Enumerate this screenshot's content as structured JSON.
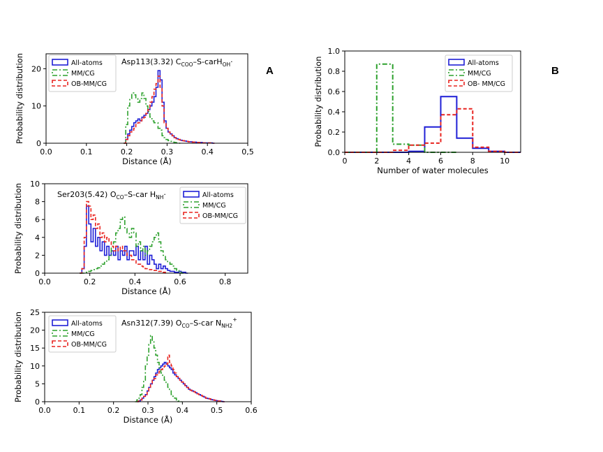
{
  "figure": {
    "panel_labels": [
      "A",
      "B"
    ]
  },
  "chart_data": [
    {
      "id": "asp113",
      "type": "histogram",
      "annotation": {
        "main": "Asp113(3.32) C",
        "sub1": "COO",
        "mid": "–S-carH",
        "sub2": "OH",
        "tail": "·"
      },
      "xlabel": "Distance (Å)",
      "ylabel": "Probability distribution",
      "xlim": [
        0,
        0.5
      ],
      "ylim": [
        0,
        24
      ],
      "xticks": [
        "0.0",
        "0.1",
        "0.2",
        "0.3",
        "0.4",
        "0,5"
      ],
      "xtick_values": [
        0,
        0.1,
        0.2,
        0.3,
        0.4,
        0.5
      ],
      "yticks": [
        "0",
        "10",
        "20"
      ],
      "ytick_values": [
        0,
        10,
        20
      ],
      "legend_position": "top-left",
      "series": [
        {
          "name": "All-atoms",
          "color": "#1f1fd6",
          "dash": "solid",
          "x": [
            0.195,
            0.2,
            0.205,
            0.21,
            0.215,
            0.22,
            0.225,
            0.23,
            0.235,
            0.24,
            0.245,
            0.25,
            0.255,
            0.26,
            0.265,
            0.27,
            0.275,
            0.28,
            0.285,
            0.29,
            0.295,
            0.3,
            0.305,
            0.31,
            0.315,
            0.32,
            0.325,
            0.33,
            0.335,
            0.34,
            0.345,
            0.35,
            0.355,
            0.36,
            0.365,
            0.37,
            0.375,
            0.38,
            0.385,
            0.39,
            0.395,
            0.4,
            0.405,
            0.41,
            0.415
          ],
          "values": [
            0,
            1,
            2.5,
            3.5,
            4.5,
            5.5,
            6,
            6.5,
            6,
            7,
            7.5,
            8,
            9,
            10,
            11,
            12.5,
            15,
            19.5,
            17,
            11,
            6,
            4,
            3,
            2.5,
            2,
            1.5,
            1.2,
            1,
            0.8,
            0.7,
            0.6,
            0.5,
            0.4,
            0.4,
            0.3,
            0.3,
            0.2,
            0.2,
            0.2,
            0.1,
            0.1,
            0.1,
            0.1,
            0.1,
            0
          ]
        },
        {
          "name": "MM/CG",
          "color": "#2ca02c",
          "dash": "dashdot",
          "x": [
            0.195,
            0.2,
            0.205,
            0.21,
            0.215,
            0.22,
            0.225,
            0.23,
            0.235,
            0.24,
            0.245,
            0.25,
            0.255,
            0.26,
            0.265,
            0.27,
            0.275,
            0.28,
            0.285,
            0.29,
            0.295,
            0.3,
            0.305,
            0.31,
            0.315,
            0.32,
            0.325,
            0.33
          ],
          "values": [
            0,
            5,
            10,
            12,
            13.5,
            13,
            12,
            11,
            12,
            13.5,
            12,
            10,
            8.5,
            7,
            6,
            5.5,
            5.5,
            4,
            3.5,
            2,
            1.5,
            1,
            0.7,
            0.5,
            0.3,
            0.2,
            0.1,
            0
          ]
        },
        {
          "name": "OB-MM/CG",
          "color": "#e8231f",
          "dash": "dashed",
          "x": [
            0.195,
            0.2,
            0.205,
            0.21,
            0.215,
            0.22,
            0.225,
            0.23,
            0.235,
            0.24,
            0.245,
            0.25,
            0.255,
            0.26,
            0.265,
            0.27,
            0.275,
            0.28,
            0.285,
            0.29,
            0.295,
            0.3,
            0.305,
            0.31,
            0.315,
            0.32,
            0.325,
            0.33,
            0.335,
            0.34,
            0.345,
            0.35,
            0.355,
            0.36,
            0.365,
            0.37,
            0.375,
            0.38,
            0.385,
            0.39,
            0.395,
            0.4,
            0.405,
            0.41,
            0.415
          ],
          "values": [
            0,
            1,
            2,
            3,
            3.5,
            4,
            5,
            5.5,
            6,
            6.5,
            7,
            8,
            9,
            11,
            12.5,
            14.5,
            16,
            18,
            15,
            10,
            5.5,
            4,
            3,
            2.5,
            2,
            1.5,
            1.2,
            1,
            0.8,
            0.7,
            0.6,
            0.5,
            0.4,
            0.4,
            0.3,
            0.3,
            0.2,
            0.2,
            0.2,
            0.1,
            0.1,
            0.1,
            0.1,
            0.1,
            0
          ]
        }
      ]
    },
    {
      "id": "ser203",
      "type": "histogram",
      "annotation": {
        "main": "Ser203(5.42) O",
        "sub1": "CO",
        "mid": "–S-car H",
        "sub2": "NH",
        "tail": "·"
      },
      "xlabel": "Distance (Å)",
      "ylabel": "Probability distribution",
      "xlim": [
        0,
        0.9
      ],
      "ylim": [
        0,
        10
      ],
      "xticks": [
        "0.0",
        "0.2",
        "0.4",
        "0.6",
        "0.8"
      ],
      "xtick_values": [
        0,
        0.2,
        0.4,
        0.6,
        0.8
      ],
      "yticks": [
        "0",
        "2",
        "4",
        "6",
        "8",
        "10"
      ],
      "ytick_values": [
        0,
        2,
        4,
        6,
        8,
        10
      ],
      "legend_position": "top-right",
      "series": [
        {
          "name": "All-atoms",
          "color": "#1f1fd6",
          "dash": "solid",
          "x": [
            0.16,
            0.17,
            0.18,
            0.19,
            0.2,
            0.21,
            0.22,
            0.23,
            0.24,
            0.25,
            0.26,
            0.27,
            0.28,
            0.29,
            0.3,
            0.31,
            0.32,
            0.33,
            0.34,
            0.35,
            0.36,
            0.37,
            0.38,
            0.39,
            0.4,
            0.41,
            0.42,
            0.43,
            0.44,
            0.45,
            0.46,
            0.47,
            0.48,
            0.49,
            0.5,
            0.51,
            0.52,
            0.53,
            0.54,
            0.55,
            0.56,
            0.57,
            0.58,
            0.59,
            0.6,
            0.61,
            0.62,
            0.63
          ],
          "values": [
            0,
            0.5,
            3,
            7.5,
            5.5,
            3.5,
            5,
            3,
            4,
            2.5,
            3.5,
            2,
            3,
            2,
            2.5,
            2,
            3,
            1.5,
            2.5,
            2,
            3,
            1.5,
            2.5,
            2.5,
            2,
            3,
            1.5,
            2.5,
            1.5,
            3,
            1,
            2,
            1.5,
            1,
            0.5,
            1,
            0.5,
            0.8,
            0.5,
            0.3,
            0.2,
            0.2,
            0.1,
            0.1,
            0.2,
            0.1,
            0.1,
            0
          ]
        },
        {
          "name": "MM/CG",
          "color": "#2ca02c",
          "dash": "dashdot",
          "x": [
            0.16,
            0.17,
            0.18,
            0.19,
            0.2,
            0.21,
            0.22,
            0.23,
            0.24,
            0.25,
            0.26,
            0.27,
            0.28,
            0.29,
            0.3,
            0.31,
            0.32,
            0.33,
            0.34,
            0.35,
            0.36,
            0.37,
            0.38,
            0.39,
            0.4,
            0.41,
            0.42,
            0.43,
            0.44,
            0.45,
            0.46,
            0.47,
            0.48,
            0.49,
            0.5,
            0.51,
            0.52,
            0.53,
            0.54,
            0.55,
            0.56,
            0.57,
            0.58,
            0.59,
            0.6,
            0.61
          ],
          "values": [
            0,
            0,
            0,
            0.1,
            0.2,
            0.3,
            0.4,
            0.5,
            0.6,
            0.8,
            1,
            1.2,
            1.5,
            2,
            3,
            3.5,
            4.5,
            5,
            6,
            6.3,
            5,
            4.5,
            4,
            5,
            4.5,
            3,
            3.5,
            2.5,
            3,
            2,
            2.5,
            3,
            3.5,
            4,
            4.5,
            3.5,
            2.5,
            2,
            1.5,
            1.2,
            1,
            0.8,
            0.5,
            0.3,
            0.2,
            0
          ]
        },
        {
          "name": "OB-MM/CG",
          "color": "#e8231f",
          "dash": "dashed",
          "x": [
            0.16,
            0.17,
            0.18,
            0.19,
            0.2,
            0.21,
            0.22,
            0.23,
            0.24,
            0.25,
            0.26,
            0.27,
            0.28,
            0.29,
            0.3,
            0.31,
            0.32,
            0.33,
            0.34,
            0.35,
            0.36,
            0.37,
            0.38,
            0.39,
            0.4,
            0.41,
            0.42,
            0.43,
            0.44,
            0.45,
            0.46,
            0.47,
            0.48,
            0.49,
            0.5,
            0.51,
            0.52,
            0.53,
            0.54
          ],
          "values": [
            0,
            0.5,
            4,
            8,
            7.5,
            6,
            6.5,
            5,
            5.5,
            4,
            4.5,
            3.5,
            4,
            3.5,
            3,
            2.5,
            3,
            2.5,
            3,
            2.5,
            2.5,
            2,
            2,
            1.5,
            1.5,
            1,
            1,
            0.8,
            0.7,
            0.5,
            0.5,
            0.4,
            0.4,
            0.3,
            0.3,
            0.2,
            0.2,
            0.1,
            0
          ]
        }
      ]
    },
    {
      "id": "asn312",
      "type": "histogram",
      "annotation": {
        "main": "Asn312(7.39) O",
        "sub1": "CO",
        "mid": "–S-car N",
        "sub2": "NH2",
        "tail": "+"
      },
      "xlabel": "Distance (Å)",
      "ylabel": "Probability distribution",
      "xlim": [
        0,
        0.6
      ],
      "ylim": [
        0,
        25
      ],
      "xticks": [
        "0.0",
        "0.1",
        "0.2",
        "0.3",
        "0.4",
        "0.5",
        "0.6"
      ],
      "xtick_values": [
        0,
        0.1,
        0.2,
        0.3,
        0.4,
        0.5,
        0.6
      ],
      "yticks": [
        "0",
        "5",
        "10",
        "15",
        "20",
        "25"
      ],
      "ytick_values": [
        0,
        5,
        10,
        15,
        20,
        25
      ],
      "legend_position": "top-left",
      "series": [
        {
          "name": "All-atoms",
          "color": "#1f1fd6",
          "dash": "solid",
          "x": [
            0.27,
            0.275,
            0.28,
            0.285,
            0.29,
            0.295,
            0.3,
            0.305,
            0.31,
            0.315,
            0.32,
            0.325,
            0.33,
            0.335,
            0.34,
            0.345,
            0.35,
            0.355,
            0.36,
            0.365,
            0.37,
            0.375,
            0.38,
            0.385,
            0.39,
            0.395,
            0.4,
            0.405,
            0.41,
            0.415,
            0.42,
            0.425,
            0.43,
            0.435,
            0.44,
            0.445,
            0.45,
            0.455,
            0.46,
            0.465,
            0.47,
            0.475,
            0.48,
            0.485,
            0.49,
            0.495,
            0.5,
            0.505,
            0.51,
            0.515,
            0.52
          ],
          "values": [
            0,
            0.2,
            0.5,
            1,
            1.5,
            2,
            3,
            4,
            5,
            6,
            7,
            8,
            9,
            9.5,
            10,
            10.5,
            11,
            10.5,
            10,
            9.5,
            9,
            8,
            7.5,
            7,
            6.5,
            6,
            5.5,
            5,
            4.5,
            4,
            3.5,
            3.2,
            3,
            2.8,
            2.5,
            2.2,
            2,
            1.8,
            1.5,
            1.3,
            1,
            0.9,
            0.8,
            0.6,
            0.5,
            0.4,
            0.3,
            0.2,
            0.2,
            0.1,
            0
          ]
        },
        {
          "name": "MM/CG",
          "color": "#2ca02c",
          "dash": "dashdot",
          "x": [
            0.265,
            0.27,
            0.275,
            0.28,
            0.285,
            0.29,
            0.295,
            0.3,
            0.305,
            0.31,
            0.315,
            0.32,
            0.325,
            0.33,
            0.335,
            0.34,
            0.345,
            0.35,
            0.355,
            0.36,
            0.365,
            0.37,
            0.375,
            0.38,
            0.385,
            0.39,
            0.395
          ],
          "values": [
            0,
            0.5,
            1,
            2,
            4,
            6,
            10,
            13,
            16,
            18.5,
            17,
            15,
            13,
            11,
            9.5,
            8,
            7,
            6,
            5,
            4,
            3,
            2,
            1.5,
            1,
            0.5,
            0.2,
            0
          ]
        },
        {
          "name": "OB-MM/CG",
          "color": "#e8231f",
          "dash": "dashed",
          "x": [
            0.27,
            0.275,
            0.28,
            0.285,
            0.29,
            0.295,
            0.3,
            0.305,
            0.31,
            0.315,
            0.32,
            0.325,
            0.33,
            0.335,
            0.34,
            0.345,
            0.35,
            0.355,
            0.36,
            0.365,
            0.37,
            0.375,
            0.38,
            0.385,
            0.39,
            0.395,
            0.4,
            0.405,
            0.41,
            0.415,
            0.42,
            0.425,
            0.43,
            0.435,
            0.44,
            0.445,
            0.45,
            0.455,
            0.46,
            0.465,
            0.47,
            0.475,
            0.48,
            0.485,
            0.49,
            0.495,
            0.5,
            0.505,
            0.51,
            0.515,
            0.52
          ],
          "values": [
            0,
            0.2,
            0.5,
            1,
            1.5,
            2,
            3,
            4,
            5,
            6,
            6.5,
            7.5,
            8,
            8.5,
            9,
            9.5,
            10,
            10.5,
            13,
            11,
            10,
            9,
            8,
            7,
            6.5,
            6,
            5.5,
            5,
            4.5,
            4,
            3.5,
            3.2,
            3,
            2.8,
            2.5,
            2.2,
            2,
            1.8,
            1.5,
            1.3,
            1,
            0.9,
            0.8,
            0.6,
            0.5,
            0.4,
            0.3,
            0.2,
            0.2,
            0.1,
            0
          ]
        }
      ]
    },
    {
      "id": "water",
      "type": "histogram",
      "annotation": null,
      "xlabel": "Number of water molecules",
      "ylabel": "Probability distribution",
      "xlim": [
        0,
        11
      ],
      "ylim": [
        0,
        1.0
      ],
      "xticks": [
        "0",
        "2",
        "4",
        "6",
        "8",
        "10"
      ],
      "xtick_values": [
        0,
        2,
        4,
        6,
        8,
        10
      ],
      "yticks": [
        "0.0",
        "0.2",
        "0.4",
        "0.6",
        "0.8",
        "1.0"
      ],
      "ytick_values": [
        0,
        0.2,
        0.4,
        0.6,
        0.8,
        1.0
      ],
      "legend_position": "top-right",
      "series": [
        {
          "name": "All-atoms",
          "color": "#1f1fd6",
          "dash": "solid",
          "x": [
            0.5,
            1.5,
            2.5,
            3.5,
            4.5,
            5.5,
            6.5,
            7.5,
            8.5,
            9.5,
            10.5
          ],
          "values": [
            0,
            0,
            0,
            0,
            0.01,
            0.25,
            0.55,
            0.14,
            0.04,
            0.01,
            0
          ]
        },
        {
          "name": "MM/CG",
          "color": "#2ca02c",
          "dash": "dashdot",
          "x": [
            0.5,
            1.5,
            2.5,
            3.5,
            4.5,
            5.5,
            6.5
          ],
          "values": [
            0,
            0,
            0.87,
            0.08,
            0.07,
            0,
            0
          ]
        },
        {
          "name": "OB- MM/CG",
          "color": "#e8231f",
          "dash": "dashed",
          "x": [
            0.5,
            1.5,
            2.5,
            3.5,
            4.5,
            5.5,
            6.5,
            7.5,
            8.5,
            9.5,
            10.5
          ],
          "values": [
            0,
            0,
            0,
            0.02,
            0.07,
            0.09,
            0.37,
            0.43,
            0.05,
            0.01,
            0
          ]
        }
      ]
    }
  ]
}
